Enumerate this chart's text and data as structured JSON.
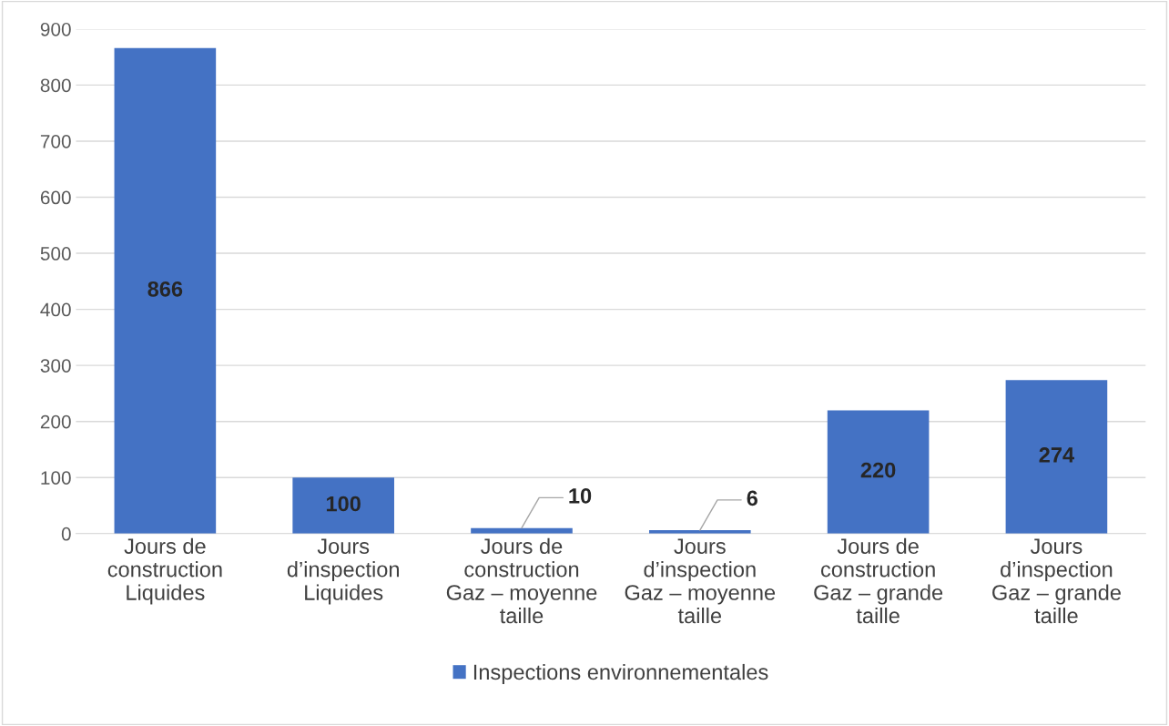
{
  "chart_data": {
    "type": "bar",
    "categories": [
      "Jours de\nconstruction\nLiquides",
      "Jours\nd’inspection\nLiquides",
      "Jours de\nconstruction\nGaz – moyenne\ntaille",
      "Jours\nd’inspection\nGaz – moyenne\ntaille",
      "Jours de\nconstruction\nGaz – grande\ntaille",
      "Jours\nd’inspection\nGaz – grande\ntaille"
    ],
    "series": [
      {
        "name": "Inspections environnementales",
        "color": "#4472c4",
        "values": [
          866,
          100,
          10,
          6,
          220,
          274
        ]
      }
    ],
    "ylim": [
      0,
      900
    ],
    "yticks": [
      0,
      100,
      200,
      300,
      400,
      500,
      600,
      700,
      800,
      900
    ],
    "grid": "y",
    "legend": "bottom",
    "data_labels": true
  }
}
